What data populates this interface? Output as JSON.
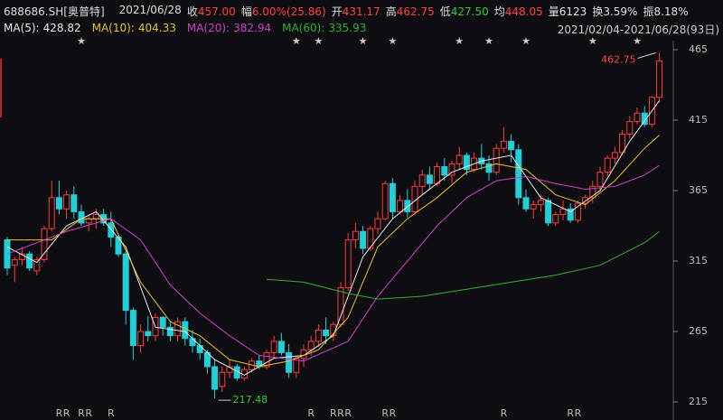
{
  "header": {
    "code": "688686.SH[奥普特]",
    "date": "2021/06/28",
    "range": "2021/02/04-2021/06/28(93日)",
    "quote": [
      {
        "label": "收",
        "value": "457.00",
        "color": "#ff4040"
      },
      {
        "label": "幅",
        "value": "6.00%(25.86)",
        "color": "#ff4040"
      },
      {
        "label": "开",
        "value": "431.17",
        "color": "#ff4040"
      },
      {
        "label": "高",
        "value": "462.75",
        "color": "#ff4040"
      },
      {
        "label": "低",
        "value": "427.50",
        "color": "#33cc33"
      },
      {
        "label": "均",
        "value": "448.05",
        "color": "#ff4040"
      },
      {
        "label": "量",
        "value": "6123",
        "color": "#e0e0e0"
      },
      {
        "label": "换",
        "value": "3.59%",
        "color": "#e0e0e0"
      },
      {
        "label": "振",
        "value": "8.18%",
        "color": "#e0e0e0"
      }
    ]
  },
  "chart_data": {
    "type": "candlestick",
    "up_color": "#ff3b3b",
    "down_color": "#20d0d8",
    "ylim": [
      215,
      465
    ],
    "yticks": [
      465,
      415,
      365,
      315,
      265,
      215
    ],
    "ohlc": [
      [
        330,
        332,
        305,
        310
      ],
      [
        312,
        318,
        300,
        316
      ],
      [
        316,
        325,
        312,
        320
      ],
      [
        320,
        322,
        308,
        310
      ],
      [
        308,
        318,
        305,
        316
      ],
      [
        316,
        340,
        314,
        338
      ],
      [
        338,
        372,
        336,
        360
      ],
      [
        360,
        372,
        348,
        352
      ],
      [
        352,
        365,
        345,
        362
      ],
      [
        362,
        368,
        345,
        350
      ],
      [
        350,
        355,
        340,
        342
      ],
      [
        342,
        348,
        336,
        345
      ],
      [
        345,
        352,
        338,
        348
      ],
      [
        348,
        352,
        340,
        342
      ],
      [
        342,
        350,
        325,
        332
      ],
      [
        332,
        334,
        318,
        320
      ],
      [
        320,
        322,
        270,
        280
      ],
      [
        280,
        282,
        245,
        255
      ],
      [
        255,
        270,
        250,
        265
      ],
      [
        265,
        276,
        258,
        262
      ],
      [
        262,
        278,
        258,
        275
      ],
      [
        275,
        276,
        262,
        268
      ],
      [
        268,
        272,
        258,
        262
      ],
      [
        262,
        275,
        258,
        272
      ],
      [
        272,
        275,
        255,
        260
      ],
      [
        260,
        266,
        250,
        255
      ],
      [
        255,
        260,
        245,
        250
      ],
      [
        250,
        252,
        235,
        240
      ],
      [
        240,
        245,
        217.48,
        224
      ],
      [
        226,
        240,
        222,
        236
      ],
      [
        236,
        245,
        232,
        240
      ],
      [
        240,
        242,
        230,
        232
      ],
      [
        232,
        240,
        230,
        238
      ],
      [
        238,
        246,
        236,
        244
      ],
      [
        244,
        248,
        238,
        240
      ],
      [
        240,
        252,
        238,
        250
      ],
      [
        250,
        262,
        246,
        258
      ],
      [
        258,
        264,
        248,
        250
      ],
      [
        250,
        256,
        232,
        236
      ],
      [
        236,
        248,
        232,
        246
      ],
      [
        246,
        256,
        240,
        252
      ],
      [
        252,
        262,
        248,
        258
      ],
      [
        258,
        270,
        254,
        266
      ],
      [
        266,
        275,
        256,
        262
      ],
      [
        262,
        272,
        258,
        270
      ],
      [
        270,
        300,
        268,
        296
      ],
      [
        296,
        335,
        294,
        330
      ],
      [
        330,
        342,
        324,
        336
      ],
      [
        336,
        340,
        320,
        324
      ],
      [
        324,
        340,
        322,
        338
      ],
      [
        338,
        350,
        334,
        345
      ],
      [
        345,
        372,
        344,
        370
      ],
      [
        370,
        374,
        345,
        350
      ],
      [
        350,
        362,
        348,
        358
      ],
      [
        358,
        366,
        346,
        350
      ],
      [
        350,
        372,
        348,
        368
      ],
      [
        368,
        380,
        362,
        376
      ],
      [
        376,
        382,
        366,
        370
      ],
      [
        370,
        385,
        368,
        382
      ],
      [
        382,
        388,
        372,
        376
      ],
      [
        376,
        386,
        370,
        384
      ],
      [
        384,
        396,
        380,
        390
      ],
      [
        390,
        392,
        376,
        380
      ],
      [
        380,
        392,
        378,
        388
      ],
      [
        388,
        398,
        380,
        384
      ],
      [
        384,
        390,
        372,
        378
      ],
      [
        378,
        398,
        376,
        395
      ],
      [
        395,
        410,
        392,
        400
      ],
      [
        400,
        405,
        385,
        394
      ],
      [
        394,
        398,
        355,
        360
      ],
      [
        360,
        366,
        350,
        352
      ],
      [
        352,
        358,
        345,
        355
      ],
      [
        355,
        362,
        350,
        358
      ],
      [
        358,
        360,
        340,
        342
      ],
      [
        342,
        350,
        340,
        348
      ],
      [
        348,
        358,
        344,
        352
      ],
      [
        352,
        356,
        342,
        344
      ],
      [
        344,
        358,
        342,
        356
      ],
      [
        356,
        362,
        352,
        360
      ],
      [
        360,
        372,
        356,
        368
      ],
      [
        368,
        382,
        365,
        378
      ],
      [
        378,
        390,
        375,
        388
      ],
      [
        388,
        396,
        384,
        392
      ],
      [
        392,
        408,
        390,
        405
      ],
      [
        405,
        418,
        402,
        414
      ],
      [
        414,
        424,
        412,
        420
      ],
      [
        420,
        425,
        410,
        412
      ],
      [
        412,
        432,
        410,
        431.17
      ],
      [
        431.17,
        462.75,
        427.5,
        457
      ]
    ],
    "series": [
      {
        "name": "MA(5):",
        "legend_value": 428.82,
        "color": "#e8e8e8",
        "points": [
          [
            0,
            325
          ],
          [
            4,
            314
          ],
          [
            8,
            340
          ],
          [
            12,
            350
          ],
          [
            16,
            325
          ],
          [
            20,
            268
          ],
          [
            24,
            265
          ],
          [
            28,
            245
          ],
          [
            32,
            234
          ],
          [
            36,
            246
          ],
          [
            40,
            248
          ],
          [
            44,
            262
          ],
          [
            48,
            318
          ],
          [
            52,
            345
          ],
          [
            56,
            362
          ],
          [
            60,
            378
          ],
          [
            64,
            386
          ],
          [
            68,
            390
          ],
          [
            72,
            360
          ],
          [
            76,
            350
          ],
          [
            80,
            365
          ],
          [
            84,
            400
          ],
          [
            88,
            428.82
          ]
        ]
      },
      {
        "name": "MA(10):",
        "legend_value": 404.33,
        "color": "#e6c230",
        "points": [
          [
            0,
            330
          ],
          [
            6,
            330
          ],
          [
            10,
            345
          ],
          [
            14,
            345
          ],
          [
            18,
            300
          ],
          [
            22,
            272
          ],
          [
            26,
            262
          ],
          [
            30,
            245
          ],
          [
            34,
            240
          ],
          [
            38,
            244
          ],
          [
            42,
            252
          ],
          [
            46,
            275
          ],
          [
            50,
            325
          ],
          [
            54,
            345
          ],
          [
            58,
            360
          ],
          [
            62,
            378
          ],
          [
            66,
            384
          ],
          [
            70,
            380
          ],
          [
            74,
            362
          ],
          [
            78,
            355
          ],
          [
            82,
            372
          ],
          [
            86,
            395
          ],
          [
            88,
            404.33
          ]
        ]
      },
      {
        "name": "MA(20):",
        "legend_value": 382.94,
        "color": "#d040d0",
        "points": [
          [
            0,
            320
          ],
          [
            8,
            336
          ],
          [
            14,
            345
          ],
          [
            18,
            330
          ],
          [
            22,
            298
          ],
          [
            26,
            278
          ],
          [
            30,
            262
          ],
          [
            34,
            248
          ],
          [
            40,
            244
          ],
          [
            46,
            258
          ],
          [
            50,
            290
          ],
          [
            54,
            315
          ],
          [
            58,
            340
          ],
          [
            62,
            360
          ],
          [
            66,
            372
          ],
          [
            70,
            375
          ],
          [
            74,
            370
          ],
          [
            78,
            366
          ],
          [
            82,
            368
          ],
          [
            86,
            376
          ],
          [
            88,
            382.94
          ]
        ]
      },
      {
        "name": "MA(60):",
        "legend_value": 335.93,
        "color": "#30b030",
        "points": [
          [
            35,
            302
          ],
          [
            40,
            300
          ],
          [
            46,
            292
          ],
          [
            50,
            288
          ],
          [
            56,
            290
          ],
          [
            62,
            295
          ],
          [
            68,
            300
          ],
          [
            74,
            305
          ],
          [
            80,
            312
          ],
          [
            86,
            328
          ],
          [
            88,
            335.93
          ]
        ]
      }
    ],
    "max_label": {
      "value": 462.75,
      "candle": 88
    },
    "min_label": {
      "value": 217.48,
      "candle": 28
    },
    "rights_marks": {
      "label": "R",
      "candles": [
        7,
        8,
        10,
        11,
        14,
        41,
        44,
        45,
        46,
        51,
        52,
        67,
        76,
        77
      ]
    },
    "star_marks": {
      "label": "★",
      "candles": [
        10,
        39,
        42,
        48,
        52,
        61,
        65,
        70,
        79,
        85
      ]
    }
  }
}
